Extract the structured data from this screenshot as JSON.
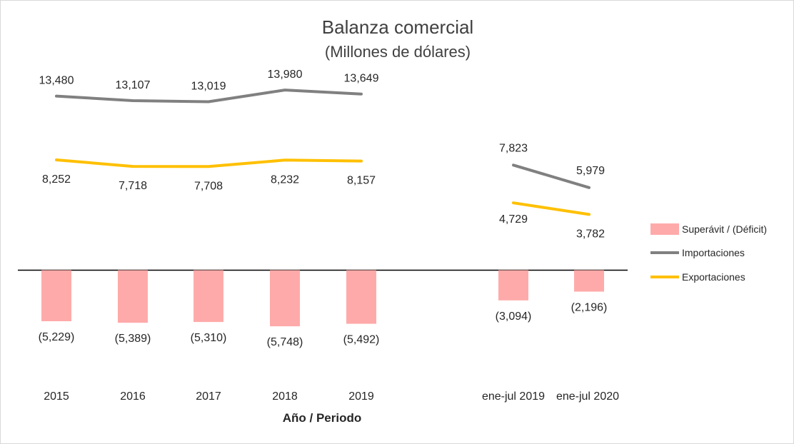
{
  "chart_data": {
    "type": "bar",
    "title": "Balanza comercial",
    "subtitle": "(Millones de dólares)",
    "xlabel": "Año / Periodo",
    "ylabel": "",
    "categories": [
      "2015",
      "2016",
      "2017",
      "2018",
      "2019",
      "ene-jul 2019",
      "ene-jul 2020"
    ],
    "series": [
      {
        "name": "Superávit / (Déficit)",
        "type": "bar",
        "color": "#ffaaaa",
        "values": [
          -5229,
          -5389,
          -5310,
          -5748,
          -5492,
          -3094,
          -2196
        ],
        "labels": [
          "(5,229)",
          "(5,389)",
          "(5,310)",
          "(5,748)",
          "(5,492)",
          "(3,094)",
          "(2,196)"
        ]
      },
      {
        "name": "Importaciones",
        "type": "line",
        "color": "#808080",
        "values": [
          13480,
          13107,
          13019,
          13980,
          13649,
          7823,
          5979
        ],
        "labels": [
          "13,480",
          "13,107",
          "13,019",
          "13,980",
          "13,649",
          "7,823",
          "5,979"
        ]
      },
      {
        "name": "Exportaciones",
        "type": "line",
        "color": "#ffc000",
        "values": [
          8252,
          7718,
          7708,
          8232,
          8157,
          4729,
          3782
        ],
        "labels": [
          "8,252",
          "7,718",
          "7,708",
          "8,232",
          "8,157",
          "4,729",
          "3,782"
        ]
      }
    ],
    "line_segments": [
      [
        0,
        4
      ],
      [
        5,
        6
      ]
    ],
    "legend_position": "right",
    "grid": false
  }
}
